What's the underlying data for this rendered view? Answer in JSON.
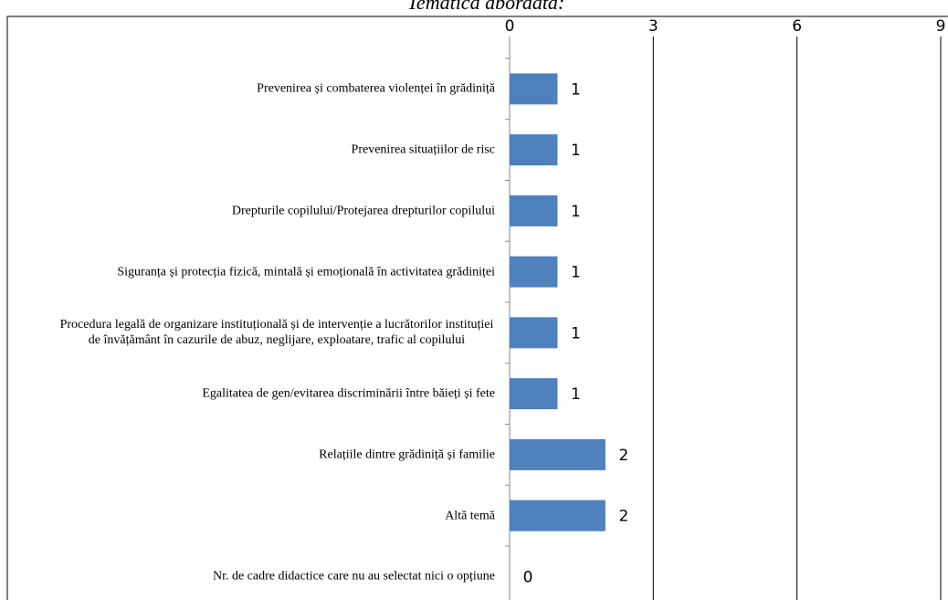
{
  "chart_data": {
    "type": "bar",
    "orientation": "horizontal",
    "title": "Tematica abordată:",
    "categories": [
      "Prevenirea și combaterea violenței în grădiniță",
      "Prevenirea situațiilor de risc",
      "Drepturile copilului/Protejarea drepturilor copilului",
      "Siguranța și protecția fizică, mintală și emoțională în activitatea grădiniței",
      "Procedura legală de organizare instituțională și de intervenție a lucrătorilor instituției de învățământ în cazurile de abuz, neglijare, exploatare, trafic al copilului",
      "Egalitatea de gen/evitarea discriminării între băieți și fete",
      "Relațiile dintre grădiniță și familie",
      "Altă temă",
      "Nr. de cadre didactice care nu au selectat nici o opțiune"
    ],
    "values": [
      1,
      1,
      1,
      1,
      1,
      1,
      2,
      2,
      0
    ],
    "color": "#4f81bd",
    "xlim": [
      0,
      9
    ],
    "xticks": [
      0,
      3,
      6,
      9
    ],
    "grid": true
  }
}
